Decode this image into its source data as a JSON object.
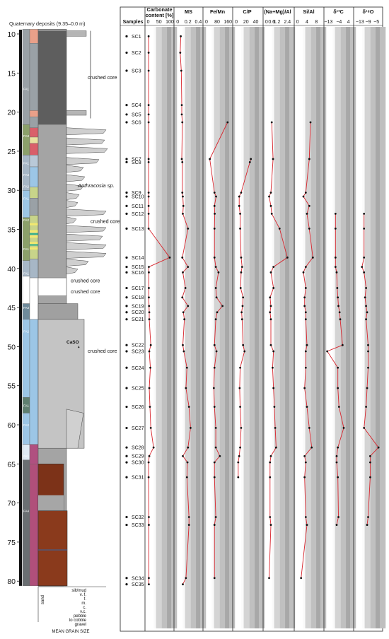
{
  "log": {
    "title": "Quaternary deposits (9.35–0.0 m)",
    "depth_ticks": [
      10,
      15,
      20,
      25,
      30,
      35,
      40,
      45,
      50,
      55,
      60,
      65,
      70,
      75,
      80
    ],
    "facies_labels": [
      "FA1",
      "FA3",
      "FA1",
      "FA3",
      "FA2",
      "FA1",
      "FA2",
      "FA1",
      "FA1",
      "FA1",
      "FA3",
      "FA2",
      "FA1",
      "FA2",
      "FA1",
      "FA4"
    ],
    "annotations": {
      "crushed_core_1": "crushed core",
      "anthracosia": "Anthracosia sp.",
      "crushed_core_2": "crushed core",
      "crushed_core_3": "crushed core",
      "crushed_core_4": "crushed core",
      "caso4": "CaSO",
      "caso4_sub": "4",
      "crushed_core_5": "crushed core"
    },
    "grain_size": {
      "labels": [
        "silt/mud",
        "v. f.",
        "f.",
        "m.",
        "c.",
        "v.c.",
        "pebble",
        "to cobble",
        "gravel"
      ],
      "sand_label": "sand",
      "caption": "MEAN GRAIN SIZE"
    }
  },
  "samples": {
    "header": "Samples",
    "items": [
      {
        "id": "SC1",
        "depth": 10.3
      },
      {
        "id": "SC2",
        "depth": 12.4
      },
      {
        "id": "SC3",
        "depth": 14.7
      },
      {
        "id": "SC4",
        "depth": 19.1
      },
      {
        "id": "SC5",
        "depth": 20.3
      },
      {
        "id": "SC6",
        "depth": 21.3
      },
      {
        "id": "SC7",
        "depth": 26.0
      },
      {
        "id": "SC8",
        "depth": 26.4
      },
      {
        "id": "SC9",
        "depth": 30.3
      },
      {
        "id": "SC10",
        "depth": 30.8
      },
      {
        "id": "SC11",
        "depth": 32.0
      },
      {
        "id": "SC12",
        "depth": 33.0
      },
      {
        "id": "SC13",
        "depth": 34.9
      },
      {
        "id": "SC14",
        "depth": 38.6
      },
      {
        "id": "SC15",
        "depth": 39.8
      },
      {
        "id": "SC16",
        "depth": 40.5
      },
      {
        "id": "SC17",
        "depth": 42.5
      },
      {
        "id": "SC18",
        "depth": 43.7
      },
      {
        "id": "SC19",
        "depth": 44.8
      },
      {
        "id": "SC20",
        "depth": 45.6
      },
      {
        "id": "SC21",
        "depth": 46.5
      },
      {
        "id": "SC22",
        "depth": 49.8
      },
      {
        "id": "SC23",
        "depth": 50.6
      },
      {
        "id": "SC24",
        "depth": 52.7
      },
      {
        "id": "SC25",
        "depth": 55.3
      },
      {
        "id": "SC26",
        "depth": 57.7
      },
      {
        "id": "SC27",
        "depth": 60.4
      },
      {
        "id": "SC28",
        "depth": 62.9
      },
      {
        "id": "SC29",
        "depth": 64.0
      },
      {
        "id": "SC30",
        "depth": 64.8
      },
      {
        "id": "SC31",
        "depth": 66.7
      },
      {
        "id": "SC32",
        "depth": 71.8
      },
      {
        "id": "SC33",
        "depth": 72.8
      },
      {
        "id": "SC34",
        "depth": 79.6
      },
      {
        "id": "SC35",
        "depth": 80.4
      }
    ]
  },
  "panels": [
    {
      "key": "carb",
      "title": "Carbonate",
      "title2": "content [%]",
      "ticks": [
        "0",
        "50",
        "100"
      ],
      "tick_values": [
        0,
        50,
        100
      ],
      "range": [
        -5,
        110
      ],
      "data": [
        [
          10.3,
          2
        ],
        [
          12.4,
          2
        ],
        [
          14.7,
          2
        ],
        [
          19.1,
          2
        ],
        [
          20.3,
          2
        ],
        [
          21.3,
          2
        ],
        [
          26.0,
          2
        ],
        [
          26.4,
          2
        ],
        [
          30.3,
          2
        ],
        [
          30.8,
          2
        ],
        [
          32.0,
          2
        ],
        [
          33.0,
          2
        ],
        [
          34.9,
          2
        ],
        [
          38.6,
          100
        ],
        [
          39.8,
          3
        ],
        [
          40.5,
          3
        ],
        [
          42.5,
          3
        ],
        [
          43.7,
          3
        ],
        [
          44.8,
          4
        ],
        [
          45.6,
          5
        ],
        [
          46.5,
          5
        ],
        [
          49.8,
          12
        ],
        [
          50.6,
          5
        ],
        [
          52.7,
          10
        ],
        [
          55.3,
          5
        ],
        [
          57.7,
          8
        ],
        [
          60.4,
          12
        ],
        [
          62.9,
          25
        ],
        [
          64.0,
          5
        ],
        [
          64.8,
          2
        ],
        [
          66.7,
          2
        ],
        [
          71.8,
          3
        ],
        [
          72.8,
          3
        ],
        [
          79.6,
          3
        ],
        [
          80.4,
          3
        ]
      ]
    },
    {
      "key": "ms",
      "title": "MS",
      "ticks": [
        "0",
        "0.2",
        "0.4"
      ],
      "tick_values": [
        0,
        0.2,
        0.4
      ],
      "range": [
        -0.03,
        0.45
      ],
      "data": [
        [
          10.3,
          0.06
        ],
        [
          12.4,
          0.05
        ],
        [
          14.7,
          0.07
        ],
        [
          19.1,
          0.08
        ],
        [
          20.3,
          0.08
        ],
        [
          21.3,
          0.09
        ],
        [
          26.0,
          0.08
        ],
        [
          26.4,
          0.09
        ],
        [
          30.3,
          0.09
        ],
        [
          30.8,
          0.1
        ],
        [
          32.0,
          0.11
        ],
        [
          33.0,
          0.1
        ],
        [
          34.9,
          0.2
        ],
        [
          38.6,
          0.09
        ],
        [
          39.8,
          0.2
        ],
        [
          40.5,
          0.1
        ],
        [
          42.5,
          0.15
        ],
        [
          43.7,
          0.09
        ],
        [
          44.8,
          0.2
        ],
        [
          45.6,
          0.11
        ],
        [
          46.5,
          0.13
        ],
        [
          49.8,
          0.1
        ],
        [
          50.6,
          0.12
        ],
        [
          52.7,
          0.18
        ],
        [
          55.3,
          0.16
        ],
        [
          57.7,
          0.22
        ],
        [
          60.4,
          0.25
        ],
        [
          62.9,
          0.2
        ],
        [
          64.0,
          0.1
        ],
        [
          64.8,
          0.19
        ],
        [
          66.7,
          0.18
        ],
        [
          71.8,
          0.22
        ],
        [
          72.8,
          0.22
        ],
        [
          79.6,
          0.16
        ],
        [
          80.4,
          0.1
        ]
      ]
    },
    {
      "key": "femn",
      "title": "Fe/Mn",
      "ticks": [
        "0",
        "80",
        "160"
      ],
      "tick_values": [
        0,
        80,
        160
      ],
      "range": [
        -10,
        175
      ],
      "data": [
        [
          21.3,
          158
        ],
        [
          26.0,
          25
        ],
        [
          30.3,
          60
        ],
        [
          30.8,
          72
        ],
        [
          32.0,
          60
        ],
        [
          33.0,
          62
        ],
        [
          34.9,
          60
        ],
        [
          38.6,
          60
        ],
        [
          39.8,
          70
        ],
        [
          40.5,
          90
        ],
        [
          42.5,
          70
        ],
        [
          43.7,
          75
        ],
        [
          44.8,
          120
        ],
        [
          45.6,
          80
        ],
        [
          46.5,
          70
        ],
        [
          49.8,
          60
        ],
        [
          50.6,
          75
        ],
        [
          52.7,
          60
        ],
        [
          55.3,
          55
        ],
        [
          57.7,
          60
        ],
        [
          60.4,
          70
        ],
        [
          62.9,
          70
        ],
        [
          64.0,
          100
        ],
        [
          64.8,
          60
        ],
        [
          66.7,
          60
        ],
        [
          71.8,
          70
        ],
        [
          72.8,
          60
        ],
        [
          79.6,
          60
        ]
      ]
    },
    {
      "key": "cp",
      "title": "C/P",
      "ticks": [
        "0",
        "20",
        "40"
      ],
      "tick_values": [
        0,
        20,
        40
      ],
      "range": [
        -3,
        48
      ],
      "data": [
        [
          26.0,
          30
        ],
        [
          26.4,
          28
        ],
        [
          30.3,
          10
        ],
        [
          30.8,
          6
        ],
        [
          32.0,
          6
        ],
        [
          33.0,
          8
        ],
        [
          34.9,
          8
        ],
        [
          38.6,
          10
        ],
        [
          39.8,
          12
        ],
        [
          40.5,
          10
        ],
        [
          42.5,
          9
        ],
        [
          43.7,
          14
        ],
        [
          44.8,
          13
        ],
        [
          45.6,
          11
        ],
        [
          46.5,
          12
        ],
        [
          49.8,
          14
        ],
        [
          50.6,
          17
        ],
        [
          52.7,
          8
        ],
        [
          55.3,
          7
        ],
        [
          57.7,
          8
        ],
        [
          60.4,
          10
        ],
        [
          62.9,
          8
        ],
        [
          64.0,
          6
        ],
        [
          64.8,
          4
        ],
        [
          66.7,
          4
        ]
      ]
    },
    {
      "key": "namg",
      "title": "(Na+Mg)/Al",
      "ticks": [
        "0",
        "0.6",
        "1.2",
        "2.4"
      ],
      "tick_values": [
        0,
        0.6,
        1.2,
        2.4
      ],
      "range": [
        -0.15,
        2.7
      ],
      "data": [
        [
          21.3,
          0.6
        ],
        [
          26.0,
          0.75
        ],
        [
          30.3,
          0.5
        ],
        [
          30.8,
          0.3
        ],
        [
          32.0,
          0.5
        ],
        [
          33.0,
          0.6
        ],
        [
          34.9,
          1.5
        ],
        [
          38.6,
          2.4
        ],
        [
          39.8,
          0.8
        ],
        [
          40.5,
          0.5
        ],
        [
          42.5,
          0.8
        ],
        [
          43.7,
          0.4
        ],
        [
          44.8,
          0.5
        ],
        [
          45.6,
          0.4
        ],
        [
          46.5,
          0.5
        ],
        [
          49.8,
          0.5
        ],
        [
          50.6,
          0.8
        ],
        [
          52.7,
          0.7
        ],
        [
          55.3,
          0.8
        ],
        [
          57.7,
          0.9
        ],
        [
          60.4,
          1.0
        ],
        [
          62.9,
          1.1
        ],
        [
          64.0,
          0.5
        ],
        [
          64.8,
          0.4
        ],
        [
          66.7,
          0.4
        ],
        [
          71.8,
          0.4
        ],
        [
          72.8,
          0.5
        ],
        [
          79.6,
          0.3
        ]
      ]
    },
    {
      "key": "sial",
      "title": "Si/Al",
      "ticks": [
        "0",
        "4",
        "8"
      ],
      "tick_values": [
        0,
        4,
        8
      ],
      "range": [
        -0.5,
        10
      ],
      "data": [
        [
          21.3,
          5.5
        ],
        [
          26.0,
          5.0
        ],
        [
          30.3,
          3.5
        ],
        [
          30.8,
          2.5
        ],
        [
          32.0,
          5.0
        ],
        [
          33.0,
          4.0
        ],
        [
          34.9,
          5.0
        ],
        [
          38.6,
          6.5
        ],
        [
          39.8,
          3.5
        ],
        [
          40.5,
          2.5
        ],
        [
          42.5,
          3.5
        ],
        [
          43.7,
          3.0
        ],
        [
          44.8,
          3.0
        ],
        [
          45.6,
          3.5
        ],
        [
          46.5,
          3.5
        ],
        [
          49.8,
          4.0
        ],
        [
          50.6,
          3.5
        ],
        [
          52.7,
          3.5
        ],
        [
          55.3,
          3.0
        ],
        [
          57.7,
          4.0
        ],
        [
          60.4,
          5.0
        ],
        [
          62.9,
          6.0
        ],
        [
          64.0,
          3.0
        ],
        [
          64.8,
          3.5
        ],
        [
          66.7,
          3.0
        ],
        [
          71.8,
          3.5
        ],
        [
          72.8,
          4.0
        ],
        [
          79.6,
          1.5
        ]
      ]
    },
    {
      "key": "d13c",
      "title": "δ¹³C",
      "ticks": [
        "−13",
        "−4",
        "4"
      ],
      "tick_values": [
        -13,
        -4,
        4
      ],
      "range": [
        -15,
        6
      ],
      "data": [
        [
          33.0,
          -7
        ],
        [
          34.9,
          -7
        ],
        [
          38.6,
          -7
        ],
        [
          39.8,
          -7
        ],
        [
          40.5,
          -6
        ],
        [
          42.5,
          -5.5
        ],
        [
          43.7,
          -5
        ],
        [
          44.8,
          -4.5
        ],
        [
          45.6,
          -3.5
        ],
        [
          46.5,
          -3
        ],
        [
          49.8,
          -1
        ],
        [
          50.6,
          -14
        ],
        [
          52.7,
          -5
        ],
        [
          55.3,
          -5
        ],
        [
          57.7,
          -4
        ],
        [
          60.4,
          0
        ],
        [
          62.9,
          -5
        ],
        [
          64.0,
          -6
        ],
        [
          64.8,
          -6
        ],
        [
          66.7,
          -5
        ],
        [
          71.8,
          -4.5
        ],
        [
          72.8,
          -6
        ]
      ]
    },
    {
      "key": "d18o",
      "title": "δ¹⁸O",
      "ticks": [
        "−13",
        "−9",
        "−5"
      ],
      "tick_values": [
        -13,
        -9,
        -5
      ],
      "range": [
        -15,
        -3
      ],
      "data": [
        [
          33.0,
          -11
        ],
        [
          34.9,
          -11
        ],
        [
          38.6,
          -11
        ],
        [
          39.8,
          -12
        ],
        [
          40.5,
          -11
        ],
        [
          42.5,
          -10
        ],
        [
          43.7,
          -10.5
        ],
        [
          44.8,
          -10
        ],
        [
          45.6,
          -9.5
        ],
        [
          46.5,
          -10
        ],
        [
          49.8,
          -9
        ],
        [
          50.6,
          -9
        ],
        [
          52.7,
          -9
        ],
        [
          55.3,
          -9.5
        ],
        [
          57.7,
          -10
        ],
        [
          60.4,
          -11
        ],
        [
          62.9,
          -4
        ],
        [
          64.0,
          -8
        ],
        [
          64.8,
          -8
        ],
        [
          66.7,
          -8
        ],
        [
          71.8,
          -9
        ],
        [
          72.8,
          -9.5
        ]
      ]
    }
  ]
}
